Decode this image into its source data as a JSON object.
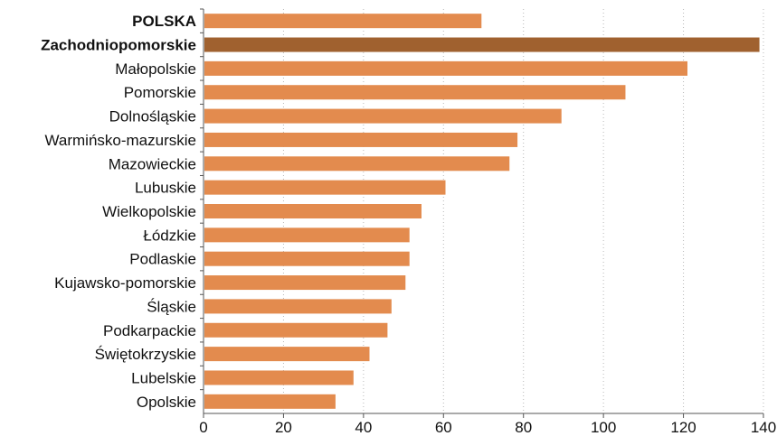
{
  "chart_data": {
    "type": "bar",
    "orientation": "horizontal",
    "title": "",
    "xlabel": "",
    "ylabel": "",
    "xlim": [
      0,
      140
    ],
    "x_ticks": [
      "0",
      "20",
      "40",
      "60",
      "80",
      "100",
      "120",
      "140"
    ],
    "grid": true,
    "colors": {
      "default": "#E38B4E",
      "highlight": "#A0612F"
    },
    "categories": [
      "POLSKA",
      "Zachodniopomorskie",
      "Małopolskie",
      "Pomorskie",
      "Dolnośląskie",
      "Warmińsko-mazurskie",
      "Mazowieckie",
      "Lubuskie",
      "Wielkopolskie",
      "Łódzkie",
      "Podlaskie",
      "Kujawsko-pomorskie",
      "Śląskie",
      "Podkarpackie",
      "Świętokrzyskie",
      "Lubelskie",
      "Opolskie"
    ],
    "values": [
      69.5,
      139,
      121,
      105.5,
      89.5,
      78.5,
      76.5,
      60.5,
      54.5,
      51.5,
      51.5,
      50.5,
      47,
      46,
      41.5,
      37.5,
      33
    ],
    "bold_categories": [
      "POLSKA",
      "Zachodniopomorskie"
    ],
    "highlight_category": "Zachodniopomorskie"
  }
}
